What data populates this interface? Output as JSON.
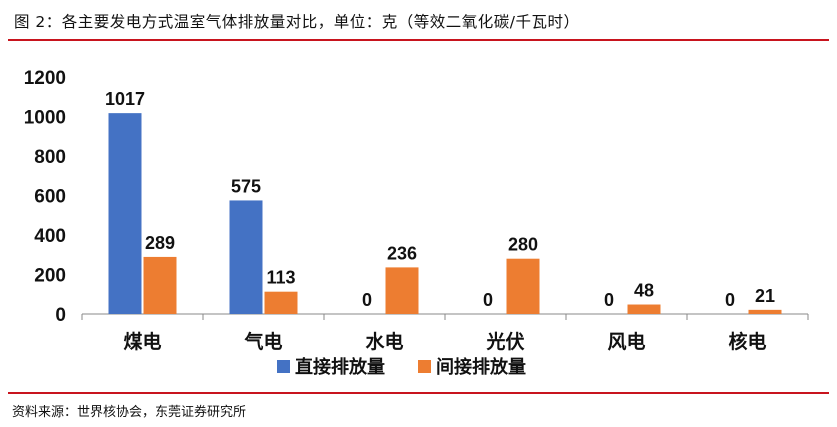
{
  "figure": {
    "title": "图 2：各主要发电方式温室气体排放量对比，单位：克（等效二氧化碳/千瓦时）",
    "source": "资料来源：世界核协会，东莞证券研究所"
  },
  "colors": {
    "direct": "#4472c4",
    "indirect": "#ed7d31",
    "rule": "#c8141e",
    "axis": "#888888"
  },
  "chart_data": {
    "type": "bar",
    "categories": [
      "煤电",
      "气电",
      "水电",
      "光伏",
      "风电",
      "核电"
    ],
    "series": [
      {
        "name": "直接排放量",
        "values": [
          1017,
          575,
          0,
          0,
          0,
          0
        ]
      },
      {
        "name": "间接排放量",
        "values": [
          289,
          113,
          236,
          280,
          48,
          21
        ]
      }
    ],
    "yticks": [
      "0",
      "200",
      "400",
      "600",
      "800",
      "1000",
      "1200"
    ],
    "ylim": [
      0,
      1200
    ],
    "grid": false,
    "legend": "bottom"
  }
}
